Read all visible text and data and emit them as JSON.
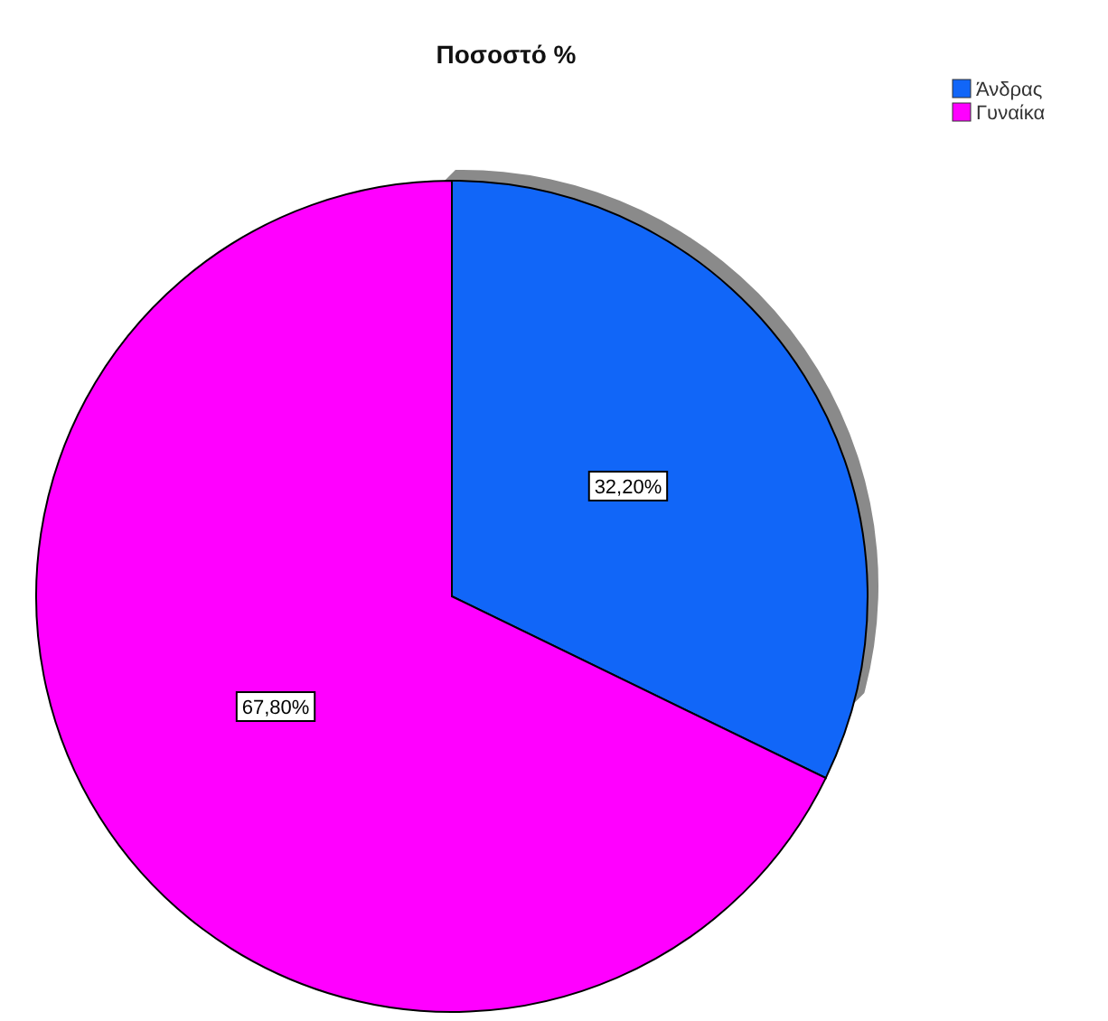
{
  "chart_data": {
    "type": "pie",
    "title": "Ποσοστό %",
    "categories": [
      "Άνδρας",
      "Γυναίκα"
    ],
    "values": [
      32.2,
      67.8
    ],
    "colors": [
      "#1166f8",
      "#ff00ff"
    ],
    "value_labels": [
      "32,20%",
      "67,80%"
    ],
    "legend": "top right"
  }
}
